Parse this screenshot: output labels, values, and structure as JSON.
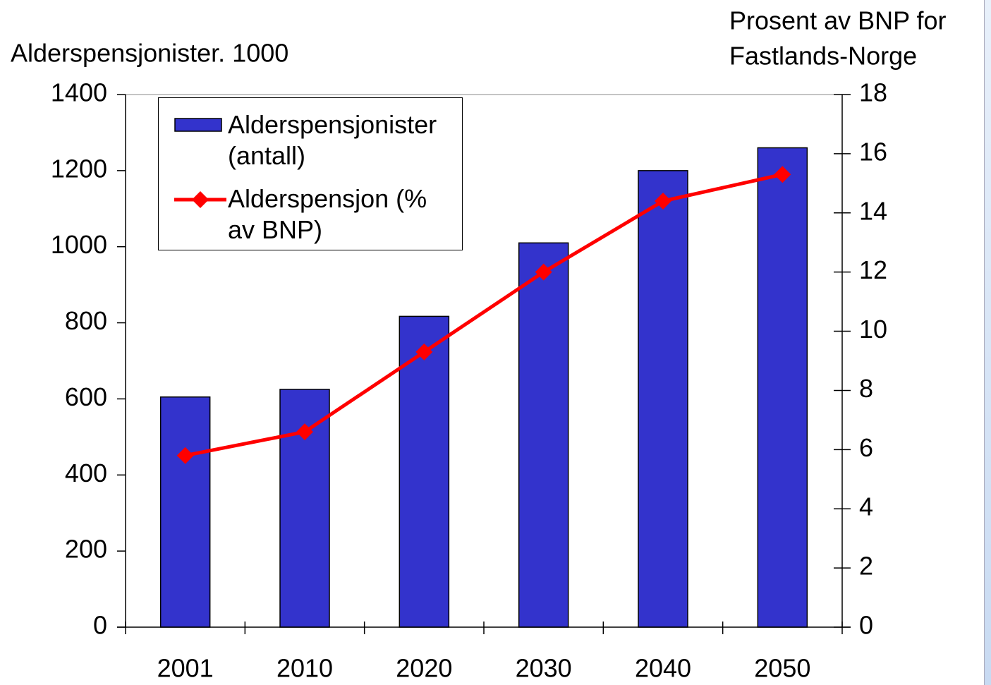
{
  "chart_data": {
    "type": "bar-line",
    "ylabel": "Alderspensjonister. 1000",
    "y2label": [
      "Prosent av BNP for",
      "Fastlands-Norge"
    ],
    "categories": [
      "2001",
      "2010",
      "2020",
      "2030",
      "2040",
      "2050"
    ],
    "series": [
      {
        "name": "Alderspensjonister (antall)",
        "type": "bar",
        "color": "#3333cc",
        "values": [
          605,
          625,
          817,
          1010,
          1200,
          1260
        ]
      },
      {
        "name": "Alderspensjon (% av BNP)",
        "type": "line",
        "color": "#ff0000",
        "axis": "y2",
        "values": [
          5.8,
          6.6,
          9.3,
          12.0,
          14.4,
          15.3
        ]
      }
    ],
    "ylim": [
      0,
      1400
    ],
    "yticks": [
      0,
      200,
      400,
      600,
      800,
      1000,
      1200,
      1400
    ],
    "y2lim": [
      0,
      18
    ],
    "y2ticks": [
      0,
      2,
      4,
      6,
      8,
      10,
      12,
      14,
      16,
      18
    ],
    "legend": "top-left"
  }
}
